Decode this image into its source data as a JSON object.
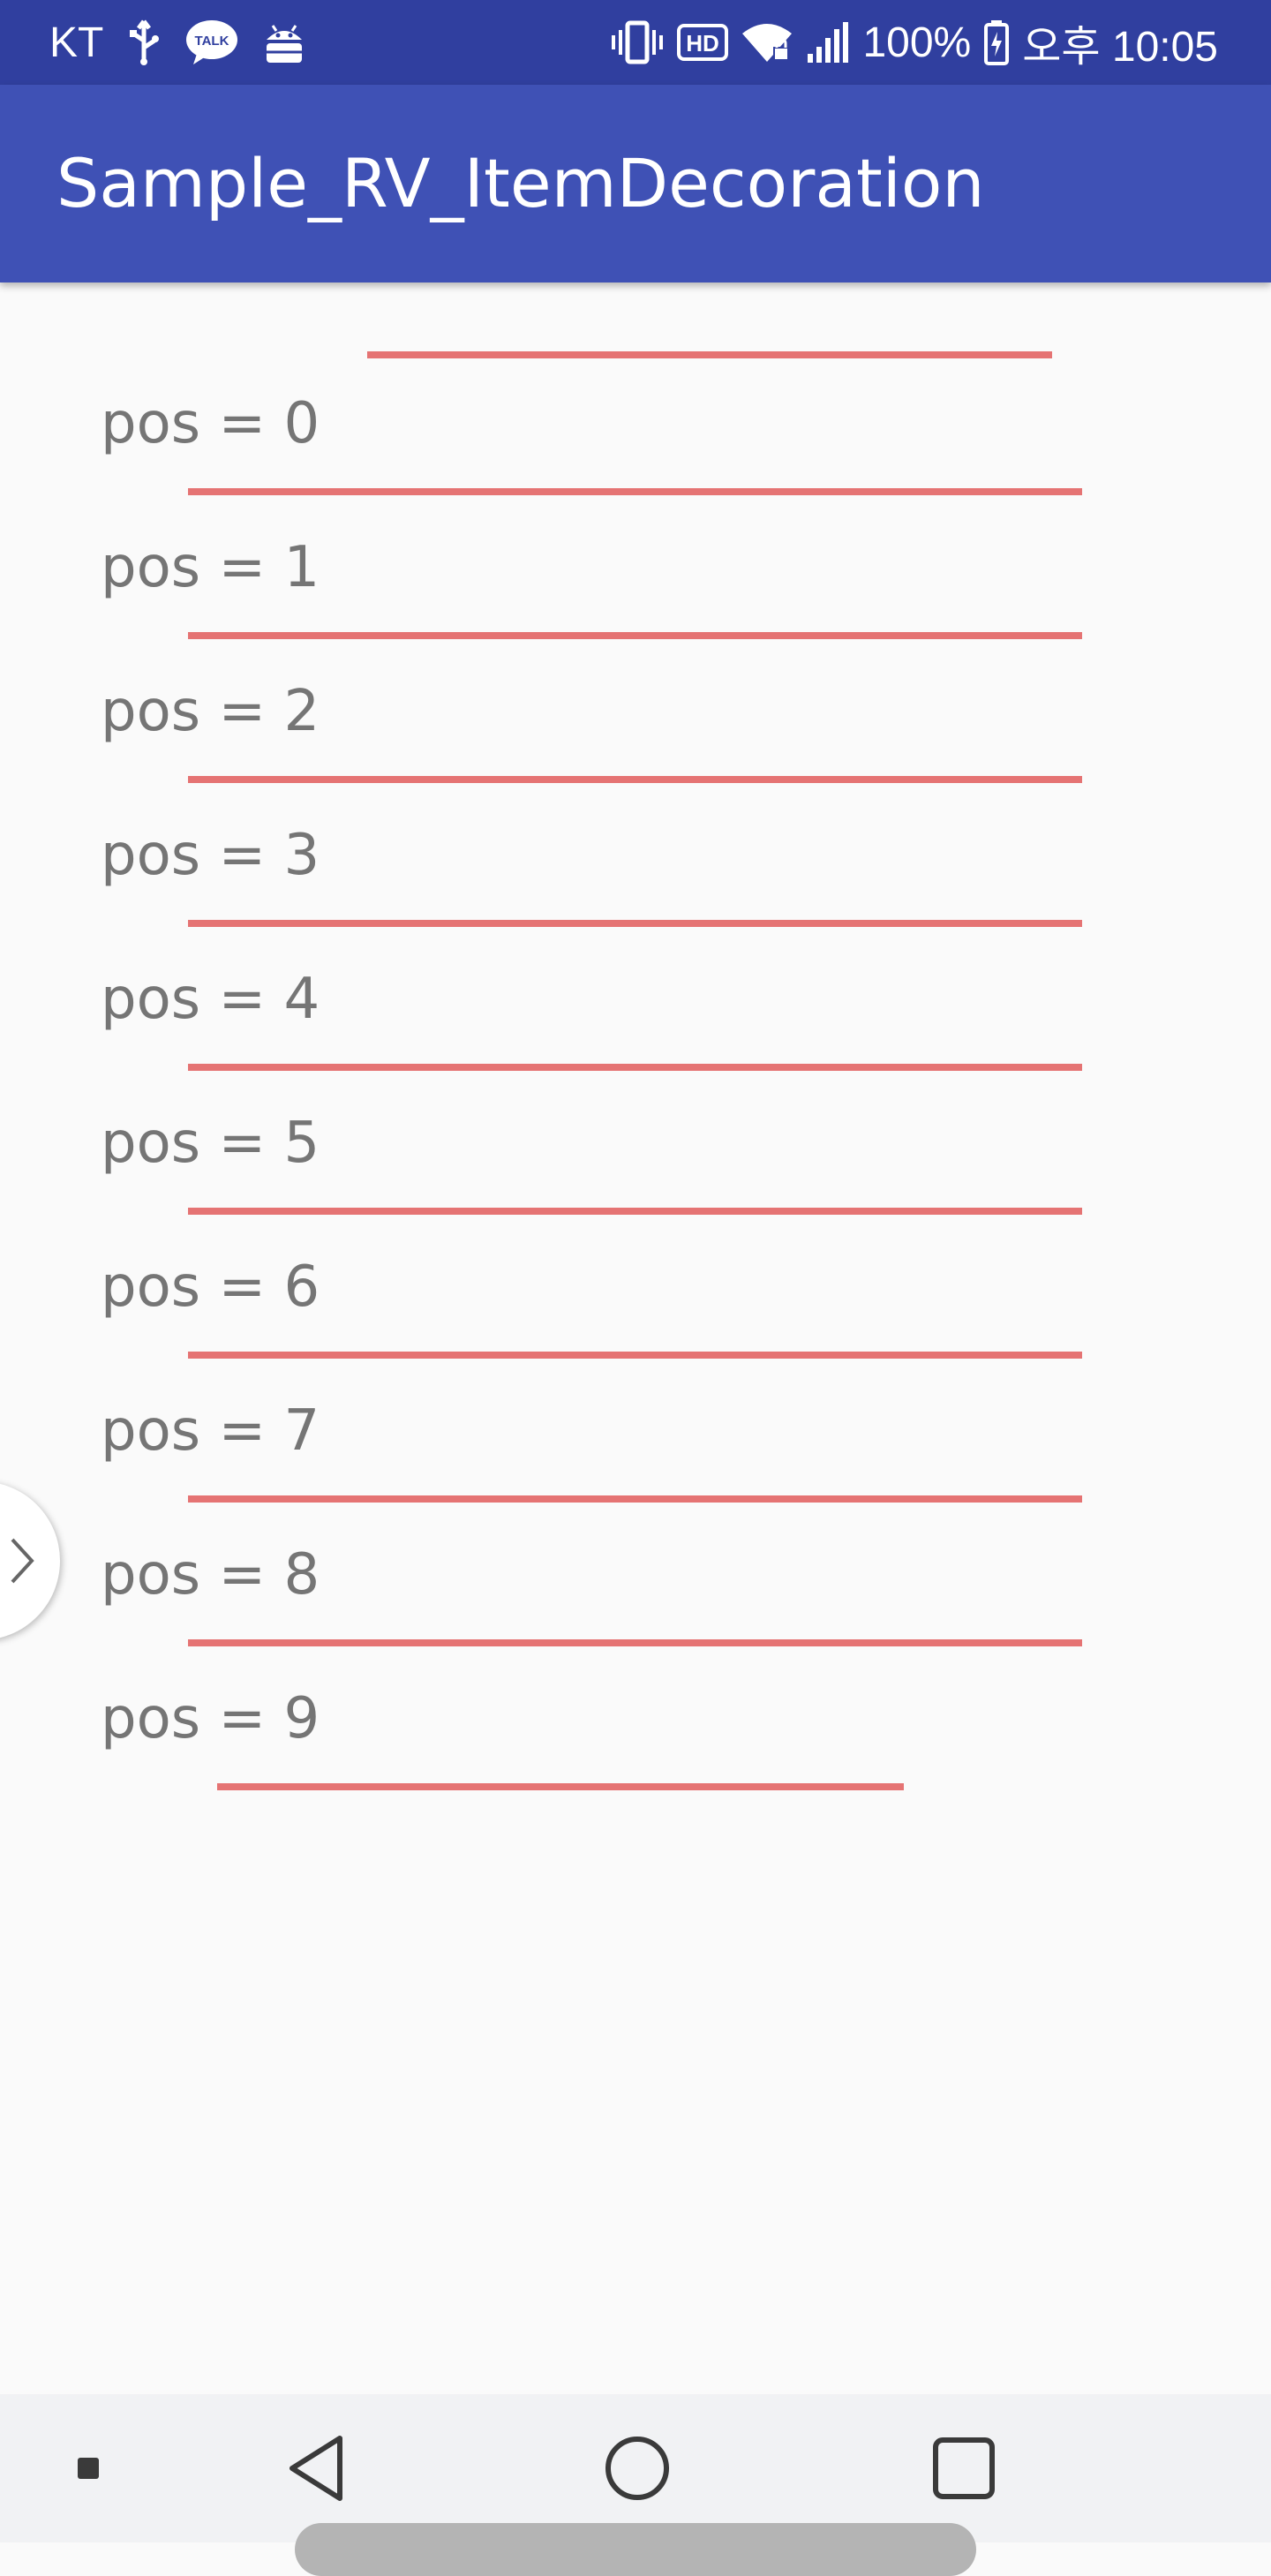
{
  "status_bar": {
    "carrier": "KT",
    "battery": "100%",
    "time": "오후 10:05",
    "icons": [
      "usb-icon",
      "kakaotalk-icon",
      "android-debug-icon",
      "vibrate-icon",
      "hd-icon",
      "wifi-icon",
      "signal-icon",
      "battery-icon"
    ],
    "kakao_label": "TALK",
    "hd_label": "HD"
  },
  "app_bar": {
    "title": "Sample_RV_ItemDecoration",
    "color": "#3f51b5",
    "status_color": "#303f9f"
  },
  "list": {
    "items": [
      {
        "label": "pos = 0"
      },
      {
        "label": "pos = 1"
      },
      {
        "label": "pos = 2"
      },
      {
        "label": "pos = 3"
      },
      {
        "label": "pos = 4"
      },
      {
        "label": "pos = 5"
      },
      {
        "label": "pos = 6"
      },
      {
        "label": "pos = 7"
      },
      {
        "label": "pos = 8"
      },
      {
        "label": "pos = 9"
      }
    ],
    "divider_color": "#e57373"
  },
  "nav_bar": {
    "icons": [
      "recent-dot-icon",
      "back-icon",
      "home-icon",
      "overview-icon"
    ]
  }
}
